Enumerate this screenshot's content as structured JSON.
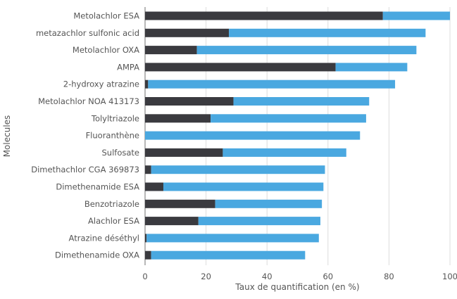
{
  "chart_data": {
    "type": "bar",
    "stacked": true,
    "orientation": "horizontal",
    "categories": [
      "Metolachlor ESA",
      "metazachlor sulfonic acid",
      "Metolachlor OXA",
      "AMPA",
      "2-hydroxy atrazine",
      "Metolachlor NOA 413173",
      "Tolyltriazole",
      "Fluoranthène",
      "Sulfosate",
      "Dimethachlor CGA 369873",
      "Dimethenamide ESA",
      "Benzotriazole",
      "Alachlor ESA",
      "Atrazine déséthyl",
      "Dimethenamide OXA"
    ],
    "series": [
      {
        "color": "#3a3a3f",
        "values": [
          78,
          27.5,
          17,
          62.5,
          1,
          29,
          21.5,
          0,
          25.5,
          2,
          6,
          23,
          17.5,
          0.5,
          2
        ]
      },
      {
        "color": "#4aa8e0",
        "values": [
          22,
          64.5,
          72,
          23.5,
          81,
          44.5,
          51,
          70.5,
          40.5,
          57,
          52.5,
          35,
          40,
          56.5,
          50.5
        ]
      }
    ],
    "xlabel": "Taux de quantification (en %)",
    "ylabel": "Molecules",
    "xlim": [
      0,
      100
    ],
    "xticks": [
      0,
      20,
      40,
      60,
      80,
      100
    ],
    "grid": "vertical",
    "grid_color": "#dcdcdc",
    "axis_color": "#888888",
    "text_color": "#555555",
    "legend": "none"
  }
}
